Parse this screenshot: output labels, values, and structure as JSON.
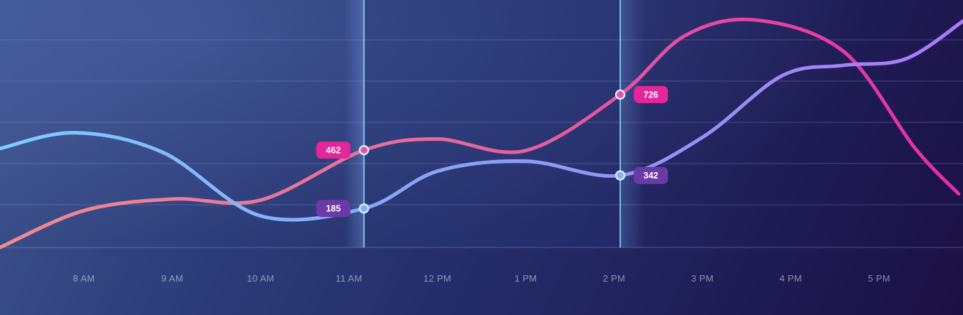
{
  "chart_data": {
    "type": "line",
    "categories": [
      "8 AM",
      "9 AM",
      "10 AM",
      "11 AM",
      "12 PM",
      "1 PM",
      "2 PM",
      "3 PM",
      "4 PM",
      "5 PM"
    ],
    "series": [
      {
        "id": "upper",
        "color_start": "#f08c92",
        "color_end": "#e22ca9",
        "points": [
          {
            "x": 7.05,
            "y": 0
          },
          {
            "x": 8.0,
            "y": 175
          },
          {
            "x": 9.0,
            "y": 230
          },
          {
            "x": 10.0,
            "y": 225
          },
          {
            "x": 11.17,
            "y": 462
          },
          {
            "x": 12.0,
            "y": 515
          },
          {
            "x": 13.0,
            "y": 460
          },
          {
            "x": 14.07,
            "y": 726
          },
          {
            "x": 14.8,
            "y": 1005
          },
          {
            "x": 15.6,
            "y": 1080
          },
          {
            "x": 16.6,
            "y": 930
          },
          {
            "x": 17.4,
            "y": 475
          },
          {
            "x": 17.9,
            "y": 255
          }
        ]
      },
      {
        "id": "lower",
        "color_start": "#7dcdfb",
        "color_end": "#a97af5",
        "points": [
          {
            "x": 7.05,
            "y": 470
          },
          {
            "x": 7.9,
            "y": 545
          },
          {
            "x": 8.9,
            "y": 450
          },
          {
            "x": 10.0,
            "y": 150
          },
          {
            "x": 11.17,
            "y": 185
          },
          {
            "x": 12.0,
            "y": 362
          },
          {
            "x": 13.0,
            "y": 410
          },
          {
            "x": 14.07,
            "y": 342
          },
          {
            "x": 15.0,
            "y": 523
          },
          {
            "x": 15.9,
            "y": 815
          },
          {
            "x": 16.6,
            "y": 865
          },
          {
            "x": 17.3,
            "y": 895
          },
          {
            "x": 17.95,
            "y": 1075
          }
        ]
      }
    ],
    "markers": [
      {
        "x": 11.17,
        "series": "upper",
        "label": "462",
        "side": "left",
        "color": "#e3269a"
      },
      {
        "x": 11.17,
        "series": "lower",
        "label": "185",
        "side": "left",
        "color": "#6b3aa7"
      },
      {
        "x": 14.07,
        "series": "upper",
        "label": "726",
        "side": "right",
        "color": "#e3269a"
      },
      {
        "x": 14.07,
        "series": "lower",
        "label": "342",
        "side": "right",
        "color": "#6b3aa7"
      }
    ],
    "highlight_range": [
      11.17,
      14.07
    ],
    "xlim": [
      7.05,
      17.95
    ],
    "ylim": [
      0,
      1175
    ],
    "grid": true,
    "colors": {
      "grid": "#8d9ad0",
      "guide": "#8fdcf7",
      "point_fill_upper": "#e3569c",
      "point_fill_lower": "#80b2f2",
      "point_stroke": "#d6ecff",
      "tick_label": "#cdd4ee"
    }
  }
}
